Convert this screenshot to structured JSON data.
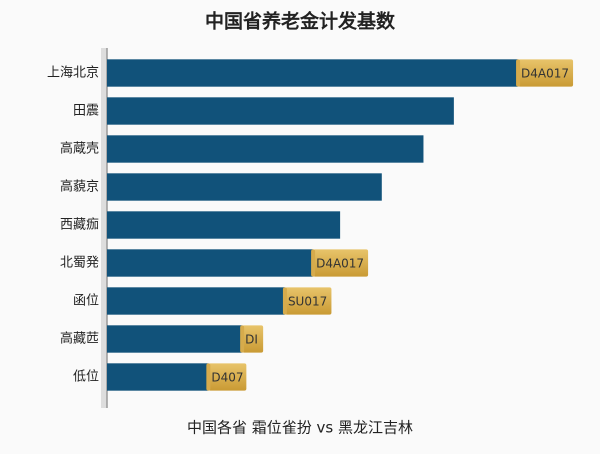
{
  "chart_data": {
    "type": "bar",
    "orientation": "horizontal",
    "title": "中国省养老金计发基数",
    "x_label": "中国各省 霜位雀扮 vs 黑龙江吉林",
    "categories": [
      "上海北京",
      "田震",
      "高蔵壳",
      "高藐京",
      "西藏痂",
      "北蜀発",
      "函位",
      "高藏苉",
      "低位"
    ],
    "values": [
      365,
      308,
      281,
      244,
      207,
      183,
      158,
      120,
      90
    ],
    "value_labels": [
      "D4A017",
      null,
      null,
      null,
      null,
      "D4A017",
      "SU017",
      "DI",
      "D407"
    ],
    "xlim": [
      0,
      420
    ],
    "color": "#11527a",
    "label_color": "#d6ab4c"
  }
}
